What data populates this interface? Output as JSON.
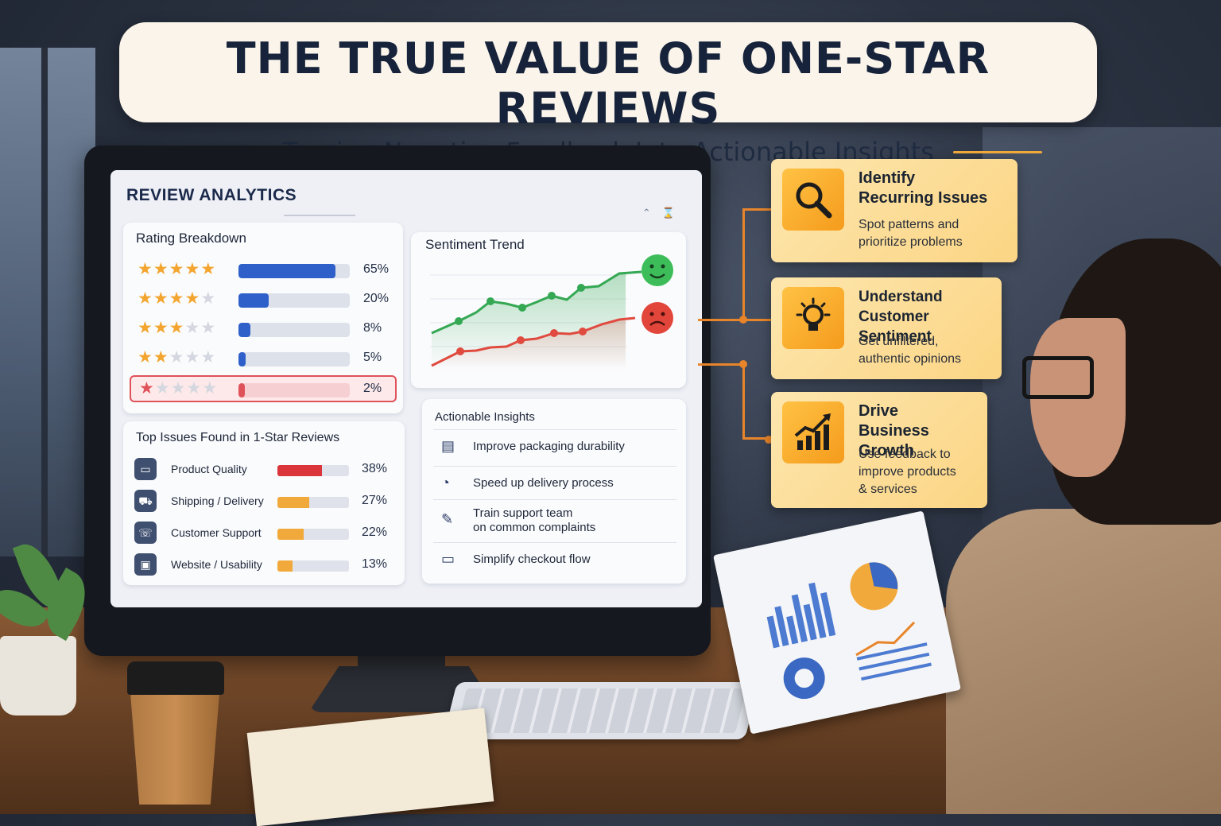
{
  "banner": {
    "title": "THE TRUE VALUE OF ONE-STAR REVIEWS",
    "subtitle": "Turning Negative Feedback Into Actionable Insights"
  },
  "dashboard": {
    "title": "REVIEW ANALYTICS",
    "rating_breakdown": {
      "title": "Rating Breakdown",
      "rows": [
        {
          "stars": 5,
          "percent": 65,
          "label": "65%"
        },
        {
          "stars": 4,
          "percent": 20,
          "label": "20%"
        },
        {
          "stars": 3,
          "percent": 8,
          "label": "8%"
        },
        {
          "stars": 2,
          "percent": 5,
          "label": "5%"
        },
        {
          "stars": 1,
          "percent": 2,
          "label": "2%",
          "highlighted": true
        }
      ],
      "bar_color": "#2f60c9",
      "highlight_color": "#e0525a"
    },
    "sentiment_trend": {
      "title": "Sentiment Trend",
      "positive_color": "#34a853",
      "negative_color": "#e04a3f",
      "positive_icon": "happy-face-icon",
      "negative_icon": "sad-face-icon"
    },
    "top_issues": {
      "title": "Top Issues Found in 1-Star Reviews",
      "items": [
        {
          "label": "Product Quality",
          "percent": 38,
          "pct_label": "38%",
          "color": "#d9353b",
          "icon": "box-icon"
        },
        {
          "label": "Shipping / Delivery",
          "percent": 27,
          "pct_label": "27%",
          "color": "#f2a93b",
          "icon": "truck-icon"
        },
        {
          "label": "Customer Support",
          "percent": 22,
          "pct_label": "22%",
          "color": "#f2a93b",
          "icon": "support-icon"
        },
        {
          "label": "Website / Usability",
          "percent": 13,
          "pct_label": "13%",
          "color": "#f2a93b",
          "icon": "browser-icon"
        }
      ]
    },
    "actionable_insights": {
      "title": "Actionable Insights",
      "items": [
        {
          "label": "Improve packaging durability",
          "icon": "package-icon"
        },
        {
          "label": "Speed up delivery process",
          "icon": "clock-icon"
        },
        {
          "label": "Train support team\non common complaints",
          "icon": "training-icon"
        },
        {
          "label": "Simplify checkout flow",
          "icon": "monitor-icon"
        }
      ]
    }
  },
  "insights": [
    {
      "title": "Identify\nRecurring Issues",
      "desc": "Spot patterns and\nprioritize problems",
      "icon": "magnifier-icon"
    },
    {
      "title": "Understand\nCustomer Sentiment",
      "desc": "Get unfiltered,\nauthentic opinions",
      "icon": "lightbulb-icon"
    },
    {
      "title": "Drive\nBusiness Growth",
      "desc": "Use feedback to\nimprove products\n& services",
      "icon": "growth-chart-icon"
    }
  ]
}
